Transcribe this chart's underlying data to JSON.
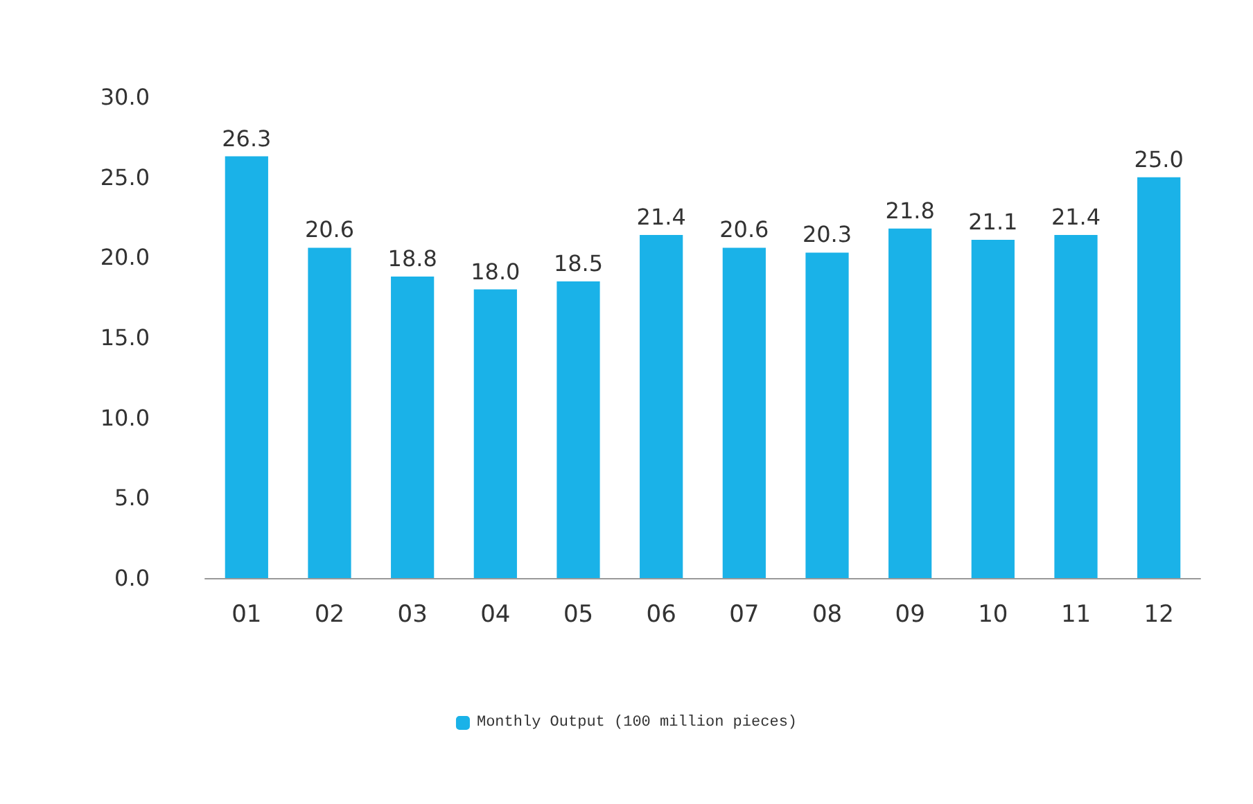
{
  "chart_data": {
    "type": "bar",
    "categories": [
      "01",
      "02",
      "03",
      "04",
      "05",
      "06",
      "07",
      "08",
      "09",
      "10",
      "11",
      "12"
    ],
    "series": [
      {
        "name": "Monthly Output (100 million pieces)",
        "color": "#1ab2e8",
        "values": [
          26.3,
          20.6,
          18.8,
          18.0,
          18.5,
          21.4,
          20.6,
          20.3,
          21.8,
          21.1,
          21.4,
          25.0
        ],
        "value_labels": [
          "26.3",
          "20.6",
          "18.8",
          "18.0",
          "18.5",
          "21.4",
          "20.6",
          "20.3",
          "21.8",
          "21.1",
          "21.4",
          "25.0"
        ]
      }
    ],
    "ylim": [
      0,
      30
    ],
    "yticks": [
      {
        "value": 0,
        "label": "0.0"
      },
      {
        "value": 5,
        "label": "5.0"
      },
      {
        "value": 10,
        "label": "10.0"
      },
      {
        "value": 15,
        "label": "15.0"
      },
      {
        "value": 20,
        "label": "20.0"
      },
      {
        "value": 25,
        "label": "25.0"
      },
      {
        "value": 30,
        "label": "30.0"
      }
    ],
    "grid": false,
    "legend": "bottom"
  }
}
